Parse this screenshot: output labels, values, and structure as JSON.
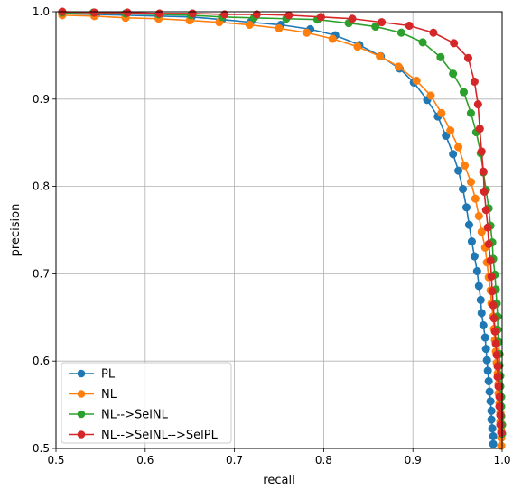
{
  "chart_data": {
    "type": "line",
    "xlabel": "recall",
    "ylabel": "precision",
    "xlim": [
      0.5,
      1.0
    ],
    "ylim": [
      0.5,
      1.0
    ],
    "xticks": [
      "0.5",
      "0.6",
      "0.7",
      "0.8",
      "0.9",
      "1.0"
    ],
    "yticks": [
      "0.5",
      "0.6",
      "0.7",
      "0.8",
      "0.9",
      "1.0"
    ],
    "grid": true,
    "legend_position": "bottom-left",
    "marker": "circle",
    "series": [
      {
        "name": "PL",
        "color": "#1f77b4",
        "points": [
          [
            0.507,
            0.998
          ],
          [
            0.545,
            0.997
          ],
          [
            0.578,
            0.996
          ],
          [
            0.615,
            0.995
          ],
          [
            0.652,
            0.994
          ],
          [
            0.686,
            0.991
          ],
          [
            0.718,
            0.988
          ],
          [
            0.752,
            0.985
          ],
          [
            0.785,
            0.98
          ],
          [
            0.813,
            0.973
          ],
          [
            0.84,
            0.962
          ],
          [
            0.864,
            0.949
          ],
          [
            0.885,
            0.935
          ],
          [
            0.901,
            0.919
          ],
          [
            0.916,
            0.899
          ],
          [
            0.928,
            0.88
          ],
          [
            0.937,
            0.858
          ],
          [
            0.945,
            0.837
          ],
          [
            0.951,
            0.818
          ],
          [
            0.956,
            0.797
          ],
          [
            0.96,
            0.776
          ],
          [
            0.963,
            0.756
          ],
          [
            0.966,
            0.737
          ],
          [
            0.969,
            0.72
          ],
          [
            0.972,
            0.703
          ],
          [
            0.974,
            0.686
          ],
          [
            0.976,
            0.67
          ],
          [
            0.977,
            0.655
          ],
          [
            0.979,
            0.641
          ],
          [
            0.981,
            0.627
          ],
          [
            0.982,
            0.614
          ],
          [
            0.983,
            0.601
          ],
          [
            0.984,
            0.589
          ],
          [
            0.985,
            0.577
          ],
          [
            0.986,
            0.565
          ],
          [
            0.987,
            0.554
          ],
          [
            0.988,
            0.543
          ],
          [
            0.988,
            0.533
          ],
          [
            0.989,
            0.523
          ],
          [
            0.99,
            0.514
          ],
          [
            0.99,
            0.505
          ]
        ]
      },
      {
        "name": "NL",
        "color": "#ff7f0e",
        "points": [
          [
            0.507,
            0.996
          ],
          [
            0.543,
            0.995
          ],
          [
            0.578,
            0.993
          ],
          [
            0.615,
            0.992
          ],
          [
            0.65,
            0.99
          ],
          [
            0.683,
            0.988
          ],
          [
            0.717,
            0.985
          ],
          [
            0.75,
            0.981
          ],
          [
            0.781,
            0.976
          ],
          [
            0.81,
            0.969
          ],
          [
            0.838,
            0.96
          ],
          [
            0.863,
            0.949
          ],
          [
            0.884,
            0.937
          ],
          [
            0.904,
            0.921
          ],
          [
            0.92,
            0.904
          ],
          [
            0.932,
            0.884
          ],
          [
            0.942,
            0.864
          ],
          [
            0.951,
            0.845
          ],
          [
            0.958,
            0.824
          ],
          [
            0.965,
            0.805
          ],
          [
            0.97,
            0.786
          ],
          [
            0.974,
            0.766
          ],
          [
            0.977,
            0.748
          ],
          [
            0.981,
            0.73
          ],
          [
            0.983,
            0.713
          ],
          [
            0.985,
            0.696
          ],
          [
            0.987,
            0.681
          ],
          [
            0.988,
            0.666
          ],
          [
            0.99,
            0.651
          ],
          [
            0.991,
            0.637
          ],
          [
            0.992,
            0.624
          ],
          [
            0.993,
            0.611
          ],
          [
            0.994,
            0.598
          ],
          [
            0.995,
            0.586
          ],
          [
            0.996,
            0.574
          ],
          [
            0.996,
            0.563
          ],
          [
            0.997,
            0.552
          ],
          [
            0.998,
            0.541
          ],
          [
            0.998,
            0.531
          ],
          [
            0.999,
            0.521
          ],
          [
            0.999,
            0.512
          ],
          [
            0.999,
            0.503
          ]
        ]
      },
      {
        "name": "NL-->SelNL",
        "color": "#2ca02c",
        "points": [
          [
            0.507,
            0.999
          ],
          [
            0.542,
            0.999
          ],
          [
            0.578,
            0.998
          ],
          [
            0.615,
            0.997
          ],
          [
            0.651,
            0.996
          ],
          [
            0.686,
            0.994
          ],
          [
            0.722,
            0.993
          ],
          [
            0.758,
            0.992
          ],
          [
            0.793,
            0.991
          ],
          [
            0.828,
            0.987
          ],
          [
            0.858,
            0.983
          ],
          [
            0.887,
            0.976
          ],
          [
            0.911,
            0.965
          ],
          [
            0.931,
            0.948
          ],
          [
            0.945,
            0.929
          ],
          [
            0.957,
            0.908
          ],
          [
            0.965,
            0.884
          ],
          [
            0.971,
            0.862
          ],
          [
            0.976,
            0.838
          ],
          [
            0.979,
            0.816
          ],
          [
            0.982,
            0.796
          ],
          [
            0.985,
            0.775
          ],
          [
            0.987,
            0.755
          ],
          [
            0.989,
            0.736
          ],
          [
            0.99,
            0.717
          ],
          [
            0.992,
            0.699
          ],
          [
            0.993,
            0.682
          ],
          [
            0.994,
            0.666
          ],
          [
            0.995,
            0.651
          ],
          [
            0.995,
            0.636
          ],
          [
            0.996,
            0.622
          ],
          [
            0.997,
            0.608
          ],
          [
            0.997,
            0.595
          ],
          [
            0.998,
            0.583
          ],
          [
            0.998,
            0.571
          ],
          [
            0.999,
            0.559
          ],
          [
            0.999,
            0.548
          ],
          [
            0.999,
            0.537
          ],
          [
            1.0,
            0.527
          ],
          [
            1.0,
            0.517
          ]
        ]
      },
      {
        "name": "NL-->SelNL-->SelPL",
        "color": "#d62728",
        "points": [
          [
            0.507,
            1.0
          ],
          [
            0.543,
            0.999
          ],
          [
            0.58,
            0.999
          ],
          [
            0.616,
            0.998
          ],
          [
            0.653,
            0.998
          ],
          [
            0.689,
            0.997
          ],
          [
            0.725,
            0.997
          ],
          [
            0.761,
            0.996
          ],
          [
            0.797,
            0.994
          ],
          [
            0.832,
            0.992
          ],
          [
            0.865,
            0.988
          ],
          [
            0.896,
            0.984
          ],
          [
            0.923,
            0.976
          ],
          [
            0.946,
            0.964
          ],
          [
            0.962,
            0.947
          ],
          [
            0.969,
            0.92
          ],
          [
            0.973,
            0.894
          ],
          [
            0.975,
            0.866
          ],
          [
            0.977,
            0.84
          ],
          [
            0.979,
            0.817
          ],
          [
            0.98,
            0.794
          ],
          [
            0.982,
            0.773
          ],
          [
            0.984,
            0.753
          ],
          [
            0.985,
            0.734
          ],
          [
            0.987,
            0.715
          ],
          [
            0.988,
            0.697
          ],
          [
            0.989,
            0.68
          ],
          [
            0.99,
            0.664
          ],
          [
            0.991,
            0.649
          ],
          [
            0.992,
            0.634
          ],
          [
            0.993,
            0.62
          ],
          [
            0.994,
            0.607
          ],
          [
            0.995,
            0.594
          ],
          [
            0.995,
            0.582
          ],
          [
            0.996,
            0.571
          ],
          [
            0.997,
            0.559
          ],
          [
            0.997,
            0.548
          ],
          [
            0.998,
            0.538
          ],
          [
            0.998,
            0.527
          ],
          [
            0.999,
            0.518
          ]
        ]
      }
    ]
  }
}
